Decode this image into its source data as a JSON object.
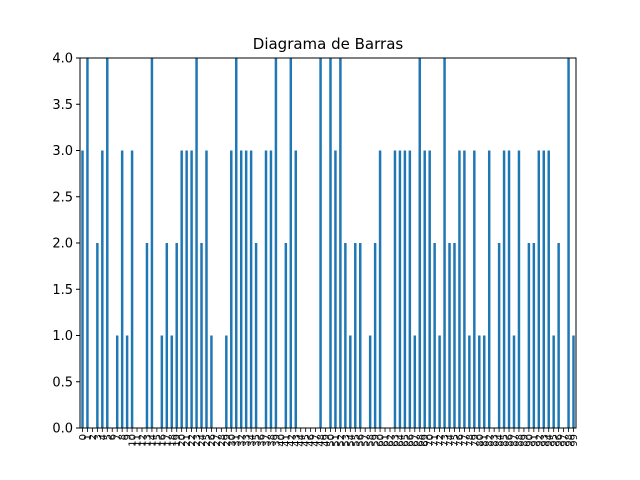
{
  "chart_data": {
    "type": "bar",
    "title": "Diagrama de Barras",
    "xlabel": "",
    "ylabel": "",
    "ylim": [
      0.0,
      4.0
    ],
    "yticks": [
      "0.0",
      "0.5",
      "1.0",
      "1.5",
      "2.0",
      "2.5",
      "3.0",
      "3.5",
      "4.0"
    ],
    "grid": false,
    "bar_color": "#1f77b4",
    "categories": [
      "0",
      "1",
      "2",
      "3",
      "4",
      "5",
      "6",
      "7",
      "8",
      "9",
      "10",
      "11",
      "12",
      "13",
      "14",
      "15",
      "16",
      "17",
      "18",
      "19",
      "20",
      "21",
      "22",
      "23",
      "24",
      "25",
      "26",
      "27",
      "28",
      "29",
      "30",
      "31",
      "32",
      "33",
      "34",
      "35",
      "36",
      "37",
      "38",
      "39",
      "40",
      "41",
      "42",
      "43",
      "44",
      "45",
      "46",
      "47",
      "48",
      "49",
      "50",
      "51",
      "52",
      "53",
      "54",
      "55",
      "56",
      "57",
      "58",
      "59",
      "60",
      "61",
      "62",
      "63",
      "64",
      "65",
      "66",
      "67",
      "68",
      "69",
      "70",
      "71",
      "72",
      "73",
      "74",
      "75",
      "76",
      "77",
      "78",
      "79",
      "80",
      "81",
      "82",
      "83",
      "84",
      "85",
      "86",
      "87",
      "88",
      "89",
      "90",
      "91",
      "92",
      "93",
      "94",
      "95",
      "96",
      "97",
      "98",
      "99"
    ],
    "values": [
      3,
      4,
      0,
      2,
      3,
      4,
      0,
      1,
      3,
      1,
      3,
      0,
      0,
      2,
      4,
      0,
      1,
      2,
      1,
      2,
      3,
      3,
      3,
      4,
      2,
      3,
      1,
      0,
      0,
      1,
      3,
      4,
      3,
      3,
      3,
      2,
      0,
      3,
      3,
      4,
      0,
      2,
      4,
      3,
      0,
      0,
      0,
      0,
      4,
      0,
      4,
      3,
      4,
      2,
      1,
      2,
      2,
      0,
      1,
      2,
      3,
      0,
      0,
      3,
      3,
      3,
      3,
      1,
      4,
      3,
      3,
      2,
      1,
      4,
      2,
      2,
      3,
      3,
      1,
      3,
      1,
      1,
      3,
      0,
      2,
      3,
      3,
      1,
      3,
      0,
      2,
      2,
      3,
      3,
      3,
      1,
      2,
      0,
      4,
      1
    ]
  }
}
